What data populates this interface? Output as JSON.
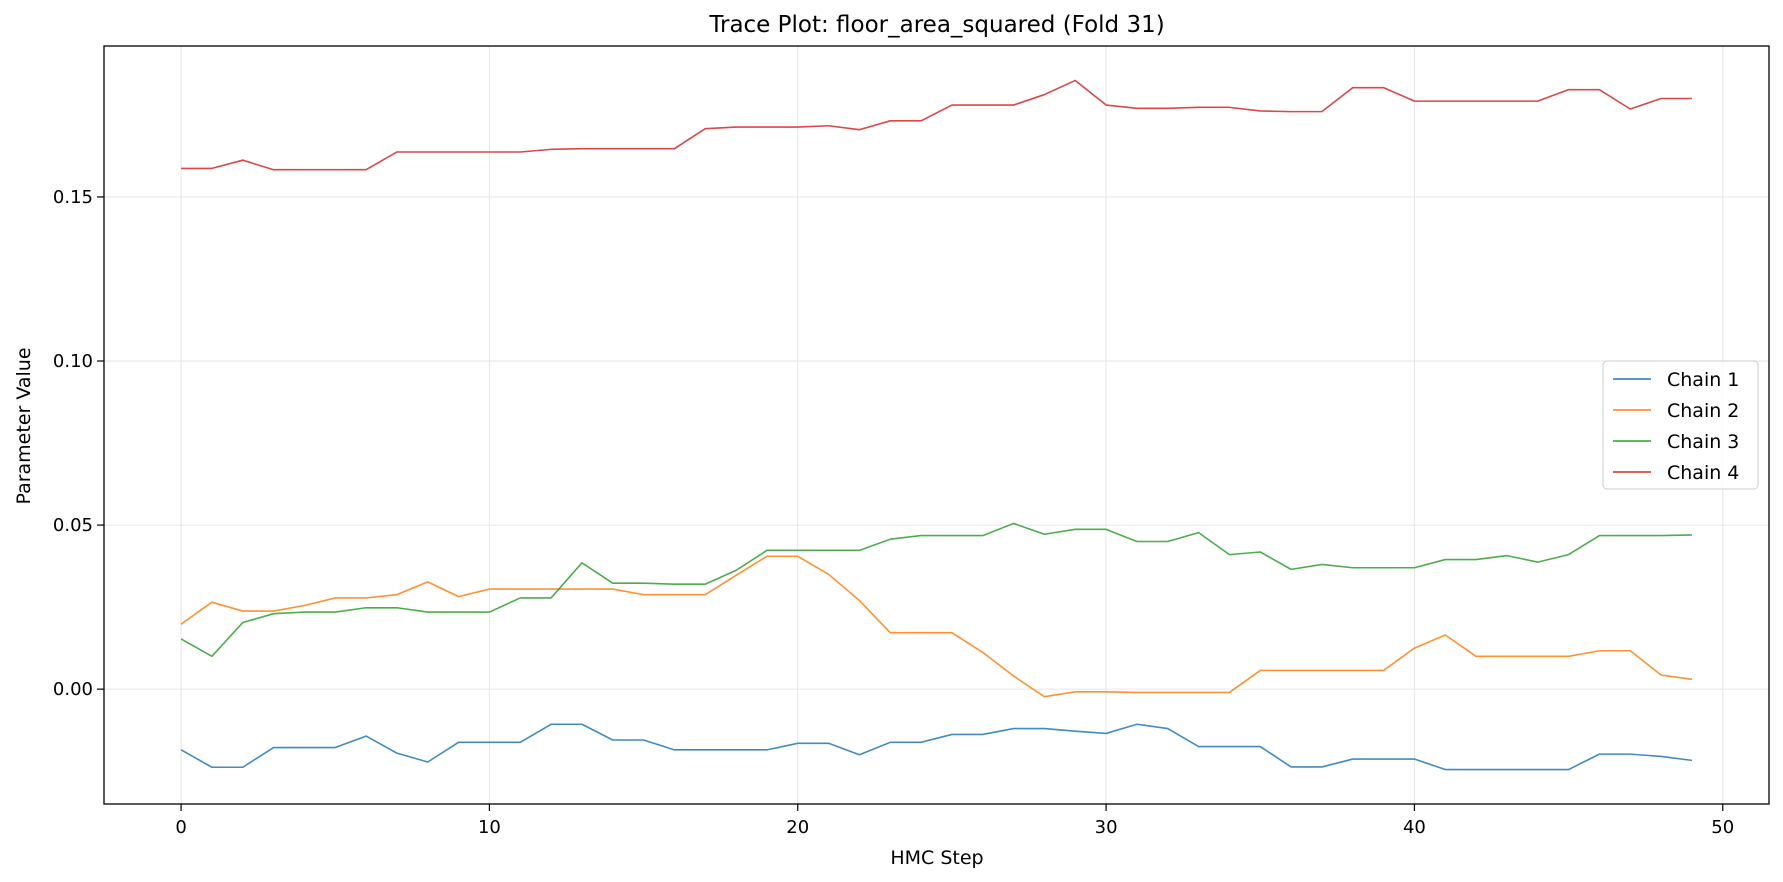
{
  "chart_data": {
    "type": "line",
    "title": "Trace Plot: floor_area_squared (Fold 31)",
    "xlabel": "HMC Step",
    "ylabel": "Parameter Value",
    "xlim": [
      -2.5,
      51.5
    ],
    "ylim": [
      -0.035,
      0.196
    ],
    "xticks": [
      0,
      10,
      20,
      30,
      40,
      50
    ],
    "yticks": [
      0.0,
      0.05,
      0.1,
      0.15
    ],
    "ytick_labels": [
      "0.00",
      "0.05",
      "0.10",
      "0.15"
    ],
    "grid": true,
    "legend_position": "center-right",
    "x": [
      0,
      1,
      2,
      3,
      4,
      5,
      6,
      7,
      8,
      9,
      10,
      11,
      12,
      13,
      14,
      15,
      16,
      17,
      18,
      19,
      20,
      21,
      22,
      23,
      24,
      25,
      26,
      27,
      28,
      29,
      30,
      31,
      32,
      33,
      34,
      35,
      36,
      37,
      38,
      39,
      40,
      41,
      42,
      43,
      44,
      45,
      46,
      47,
      48,
      49
    ],
    "series": [
      {
        "name": "Chain 1",
        "color": "#1f77b4",
        "values": [
          -0.0185,
          -0.0238,
          -0.0238,
          -0.0178,
          -0.0178,
          -0.0178,
          -0.0143,
          -0.0195,
          -0.0222,
          -0.0162,
          -0.0162,
          -0.0162,
          -0.0107,
          -0.0107,
          -0.0155,
          -0.0155,
          -0.0185,
          -0.0185,
          -0.0185,
          -0.0185,
          -0.0165,
          -0.0165,
          -0.02,
          -0.0162,
          -0.0162,
          -0.0138,
          -0.0138,
          -0.012,
          -0.012,
          -0.0128,
          -0.0135,
          -0.0107,
          -0.012,
          -0.0175,
          -0.0175,
          -0.0175,
          -0.0237,
          -0.0237,
          -0.0213,
          -0.0213,
          -0.0213,
          -0.0245,
          -0.0245,
          -0.0245,
          -0.0245,
          -0.0245,
          -0.0198,
          -0.0198,
          -0.0205,
          -0.0217
        ]
      },
      {
        "name": "Chain 2",
        "color": "#ff7f0e",
        "values": [
          0.0198,
          0.0265,
          0.0238,
          0.0238,
          0.0255,
          0.0278,
          0.0278,
          0.0288,
          0.0327,
          0.0282,
          0.0305,
          0.0305,
          0.0305,
          0.0305,
          0.0305,
          0.0288,
          0.0288,
          0.0288,
          0.0347,
          0.0405,
          0.0405,
          0.035,
          0.027,
          0.0172,
          0.0172,
          0.0172,
          0.0112,
          0.004,
          -0.0023,
          -0.0008,
          -0.0008,
          -0.001,
          -0.001,
          -0.001,
          -0.001,
          0.0057,
          0.0057,
          0.0057,
          0.0057,
          0.0057,
          0.0125,
          0.0165,
          0.01,
          0.01,
          0.01,
          0.01,
          0.0117,
          0.0117,
          0.0043,
          0.003
        ]
      },
      {
        "name": "Chain 3",
        "color": "#2ca02c",
        "values": [
          0.0153,
          0.01,
          0.0203,
          0.023,
          0.0235,
          0.0235,
          0.0248,
          0.0248,
          0.0235,
          0.0235,
          0.0235,
          0.0278,
          0.0278,
          0.0385,
          0.0323,
          0.0323,
          0.032,
          0.032,
          0.0362,
          0.0423,
          0.0423,
          0.0423,
          0.0423,
          0.0457,
          0.0468,
          0.0468,
          0.0468,
          0.0505,
          0.0472,
          0.0487,
          0.0487,
          0.045,
          0.045,
          0.0477,
          0.041,
          0.0418,
          0.0365,
          0.038,
          0.037,
          0.037,
          0.037,
          0.0395,
          0.0395,
          0.0407,
          0.0387,
          0.041,
          0.0468,
          0.0468,
          0.0468,
          0.047
        ]
      },
      {
        "name": "Chain 4",
        "color": "#d62728",
        "values": [
          0.1587,
          0.1587,
          0.1612,
          0.1583,
          0.1583,
          0.1583,
          0.1583,
          0.1637,
          0.1637,
          0.1637,
          0.1637,
          0.1637,
          0.1645,
          0.1647,
          0.1647,
          0.1647,
          0.1647,
          0.1708,
          0.1713,
          0.1713,
          0.1713,
          0.1717,
          0.1705,
          0.1732,
          0.1732,
          0.178,
          0.178,
          0.178,
          0.1812,
          0.1855,
          0.178,
          0.177,
          0.177,
          0.1773,
          0.1773,
          0.1762,
          0.176,
          0.176,
          0.1833,
          0.1833,
          0.1792,
          0.1792,
          0.1792,
          0.1792,
          0.1792,
          0.1827,
          0.1827,
          0.1768,
          0.18,
          0.18
        ]
      }
    ]
  }
}
